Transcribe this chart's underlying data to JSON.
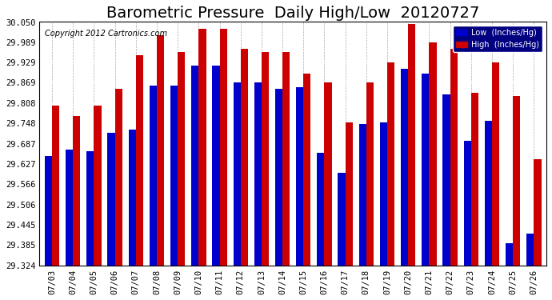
{
  "title": "Barometric Pressure  Daily High/Low  20120727",
  "copyright": "Copyright 2012 Cartronics.com",
  "legend_low": "Low  (Inches/Hg)",
  "legend_high": "High  (Inches/Hg)",
  "ylabel": "",
  "background_color": "#ffffff",
  "plot_bg_color": "#ffffff",
  "grid_color": "#aaaaaa",
  "bar_width": 0.35,
  "dates": [
    "07/03",
    "07/04",
    "07/05",
    "07/06",
    "07/07",
    "07/08",
    "07/09",
    "07/10",
    "07/11",
    "07/12",
    "07/13",
    "07/14",
    "07/15",
    "07/16",
    "07/17",
    "07/18",
    "07/19",
    "07/20",
    "07/21",
    "07/22",
    "07/23",
    "07/24",
    "07/25",
    "07/26"
  ],
  "low_values": [
    29.65,
    29.67,
    29.665,
    29.72,
    29.73,
    29.86,
    29.86,
    29.92,
    29.92,
    29.87,
    29.87,
    29.85,
    29.855,
    29.66,
    29.6,
    29.745,
    29.75,
    29.91,
    29.895,
    29.835,
    29.695,
    29.755,
    29.39,
    29.42
  ],
  "high_values": [
    29.8,
    29.77,
    29.8,
    29.85,
    29.95,
    30.01,
    29.96,
    30.03,
    30.03,
    29.97,
    29.96,
    29.96,
    29.895,
    29.87,
    29.75,
    29.87,
    29.93,
    30.045,
    29.99,
    29.97,
    29.84,
    29.93,
    29.83,
    29.64
  ],
  "ylim_min": 29.324,
  "ylim_max": 30.05,
  "yticks": [
    29.324,
    29.385,
    29.445,
    29.506,
    29.566,
    29.627,
    29.687,
    29.748,
    29.808,
    29.869,
    29.929,
    29.989,
    30.05
  ],
  "low_color": "#0000cc",
  "high_color": "#cc0000",
  "title_fontsize": 14,
  "tick_fontsize": 7.5
}
